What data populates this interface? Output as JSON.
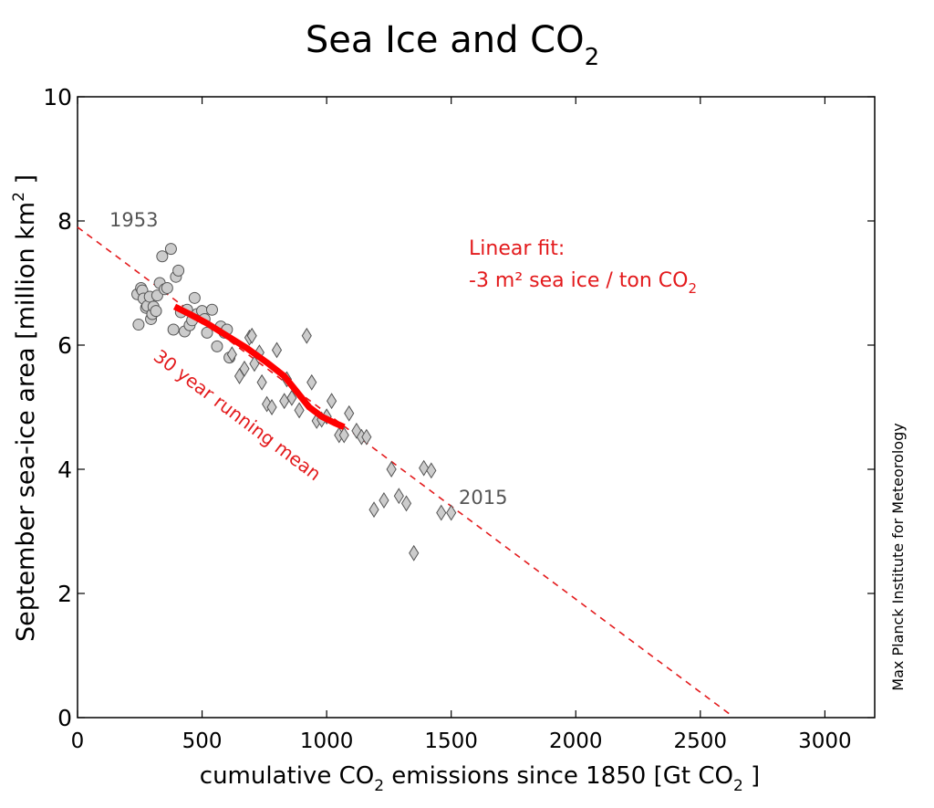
{
  "chart_data": {
    "type": "scatter",
    "title_main": "Sea Ice and CO",
    "title_sub": "2",
    "xlabel_pre": "cumulative CO",
    "xlabel_sub": "2",
    "xlabel_mid": " emissions since 1850 [Gt CO",
    "xlabel_sub2": "2",
    "xlabel_post": " ]",
    "ylabel_pre": "September sea-ice area [million km",
    "ylabel_sup": "2",
    "ylabel_post": " ]",
    "xlim": [
      0,
      3200
    ],
    "ylim": [
      0,
      10
    ],
    "xticks": [
      0,
      500,
      1000,
      1500,
      2000,
      2500,
      3000
    ],
    "yticks": [
      0,
      2,
      4,
      6,
      8,
      10
    ],
    "grid": false,
    "credit": "Max Planck Institute for Meteorology",
    "colors": {
      "fit": "#e31a1c",
      "mean": "#ff0000",
      "marker_fill": "#cccccc",
      "marker_edge": "#555555",
      "label": "#555555"
    },
    "annotations": {
      "start_year": "1953",
      "end_year": "2015",
      "fit_label_line1": "Linear fit:",
      "fit_label_line2": "-3 m² sea ice / ton CO",
      "fit_label_sub": "2",
      "running_mean_label": "30 year running mean"
    },
    "linear_fit": {
      "x": [
        0,
        2620
      ],
      "y": [
        7.9,
        0.05
      ]
    },
    "series": [
      {
        "marker": "circle",
        "x": [
          240,
          245,
          255,
          260,
          265,
          275,
          280,
          290,
          295,
          300,
          305,
          315,
          320,
          330,
          340,
          350,
          360,
          375,
          385,
          395,
          405,
          415,
          430,
          440,
          450,
          460,
          470,
          480,
          500,
          510,
          520,
          540,
          560,
          575,
          590,
          600,
          610
        ],
        "y": [
          6.82,
          6.33,
          6.92,
          6.88,
          6.75,
          6.6,
          6.63,
          6.78,
          6.42,
          6.5,
          6.62,
          6.55,
          6.8,
          7.0,
          7.43,
          6.9,
          6.92,
          7.55,
          6.25,
          7.1,
          7.2,
          6.53,
          6.22,
          6.57,
          6.32,
          6.4,
          6.76,
          6.5,
          6.55,
          6.42,
          6.2,
          6.57,
          5.98,
          6.3,
          6.2,
          6.25,
          5.8
        ]
      },
      {
        "marker": "diamond",
        "x": [
          620,
          650,
          670,
          690,
          700,
          710,
          730,
          740,
          760,
          780,
          800,
          830,
          840,
          860,
          890,
          920,
          940,
          960,
          980,
          1000,
          1020,
          1050,
          1070,
          1090,
          1120,
          1140,
          1160,
          1190,
          1230,
          1260,
          1290,
          1320,
          1350,
          1390,
          1420,
          1460,
          1500
        ],
        "y": [
          5.85,
          5.5,
          5.62,
          6.12,
          6.15,
          5.7,
          5.88,
          5.4,
          5.05,
          5.0,
          5.92,
          5.1,
          5.45,
          5.15,
          4.95,
          6.15,
          5.4,
          4.78,
          4.8,
          4.85,
          5.1,
          4.55,
          4.55,
          4.9,
          4.62,
          4.52,
          4.52,
          3.35,
          3.5,
          4.0,
          3.57,
          3.45,
          2.65,
          4.02,
          3.98,
          3.3,
          3.3
        ]
      }
    ],
    "running_mean": {
      "x": [
        390,
        450,
        520,
        600,
        680,
        760,
        830,
        880,
        930,
        980,
        1030,
        1070
      ],
      "y": [
        6.62,
        6.5,
        6.35,
        6.15,
        5.95,
        5.72,
        5.5,
        5.25,
        5.0,
        4.85,
        4.75,
        4.68
      ]
    }
  }
}
